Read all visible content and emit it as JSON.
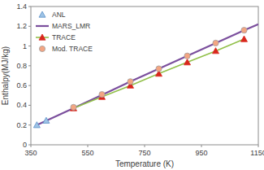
{
  "chart_data": {
    "type": "line",
    "x_label": "Temperature (K)",
    "y_label": "Enthalpy(MJ/kg)",
    "xlim": [
      350,
      1150
    ],
    "xticks": [
      350,
      550,
      750,
      950,
      1150
    ],
    "ylim": [
      0,
      1.4
    ],
    "yticks": [
      0,
      0.2,
      0.4,
      0.6,
      0.8,
      1,
      1.2,
      1.4
    ],
    "grid": false,
    "legend": "upper left",
    "series": [
      {
        "name": "ANL",
        "type": "scatter",
        "marker": "triangle",
        "color": "#9dc3e6",
        "x": [
          371,
          404
        ],
        "values": [
          0.2,
          0.245
        ]
      },
      {
        "name": "MARS_LMR",
        "type": "line",
        "line_style": "solid",
        "color": "#7b4f9d",
        "x": [
          371,
          500,
          600,
          700,
          800,
          900,
          1000,
          1100,
          1150
        ],
        "values": [
          0.2,
          0.37,
          0.505,
          0.64,
          0.77,
          0.9,
          1.03,
          1.16,
          1.22
        ]
      },
      {
        "name": "TRACE",
        "type": "line",
        "line_style": "solid",
        "marker": "triangle",
        "color": "#92c04a",
        "colors": [
          "#d9261c",
          "#d9261c",
          "#d9261c",
          "#d9261c",
          "#d9261c",
          "#d9261c",
          "#d9261c"
        ],
        "x": [
          500,
          600,
          700,
          800,
          900,
          1000,
          1100
        ],
        "values": [
          0.37,
          0.485,
          0.6,
          0.72,
          0.835,
          0.95,
          1.07
        ]
      },
      {
        "name": "Mod. TRACE",
        "type": "scatter",
        "marker": "circle",
        "color": "#f4a582",
        "x": [
          500,
          600,
          700,
          800,
          900,
          1000,
          1100
        ],
        "values": [
          0.38,
          0.51,
          0.64,
          0.77,
          0.9,
          1.03,
          1.16
        ]
      }
    ]
  }
}
